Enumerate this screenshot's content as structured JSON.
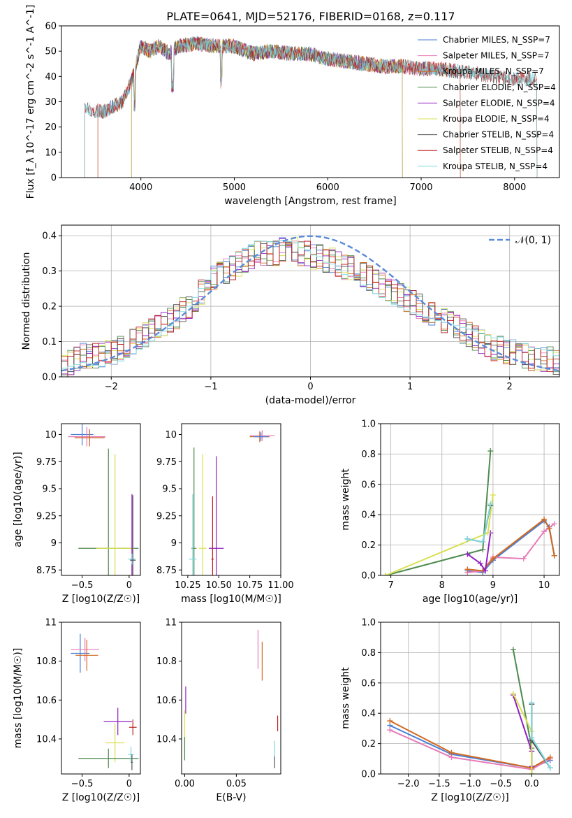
{
  "figure": {
    "title": "PLATE=0641, MJD=52176, FIBERID=0168, z=0.117"
  },
  "chart_data": [
    {
      "type": "line",
      "name": "spectrum",
      "xlabel": "wavelength [Angstrom, rest frame]",
      "ylabel": "Flux [f_λ 10^-17 erg cm^-2 s^-1 A^-1]",
      "xlim": [
        3150,
        8480
      ],
      "ylim": [
        0,
        60
      ],
      "xticks": [
        4000,
        5000,
        6000,
        7000,
        8000
      ],
      "yticks": [
        0,
        10,
        20,
        30,
        40,
        50,
        60
      ],
      "grid": false,
      "legend_position": "top-right",
      "data_trend": [
        [
          3400,
          27
        ],
        [
          3600,
          26
        ],
        [
          3800,
          30
        ],
        [
          3900,
          38
        ],
        [
          4000,
          52
        ],
        [
          4100,
          50
        ],
        [
          4200,
          52
        ],
        [
          4300,
          49
        ],
        [
          4400,
          52
        ],
        [
          4600,
          53
        ],
        [
          4800,
          52
        ],
        [
          5000,
          52
        ],
        [
          5200,
          49
        ],
        [
          5400,
          50
        ],
        [
          5600,
          49
        ],
        [
          5800,
          49
        ],
        [
          6000,
          47
        ],
        [
          6200,
          46
        ],
        [
          6400,
          45
        ],
        [
          6600,
          44
        ],
        [
          6800,
          44
        ],
        [
          7000,
          43
        ],
        [
          7200,
          43
        ],
        [
          7400,
          42
        ],
        [
          7600,
          41
        ],
        [
          7800,
          40
        ],
        [
          8000,
          39
        ],
        [
          8200,
          39
        ]
      ],
      "series": [
        {
          "name": "Chabrier MILES, N_SSP=7",
          "color": "#4a7fd6",
          "x_start": 3540,
          "x_end": 7420
        },
        {
          "name": "Salpeter MILES, N_SSP=7",
          "color": "#e77ab8",
          "x_start": 3540,
          "x_end": 7420
        },
        {
          "name": "Kroupa MILES, N_SSP=7",
          "color": "#d2691e",
          "x_start": 3540,
          "x_end": 7420
        },
        {
          "name": "Chabrier ELODIE, N_SSP=4",
          "color": "#4e8a4e",
          "x_start": 3900,
          "x_end": 6800
        },
        {
          "name": "Salpeter ELODIE, N_SSP=4",
          "color": "#9020c0",
          "x_start": 3900,
          "x_end": 6800
        },
        {
          "name": "Kroupa ELODIE, N_SSP=4",
          "color": "#d8e050",
          "x_start": 3900,
          "x_end": 6800
        },
        {
          "name": "Chabrier STELIB, N_SSP=4",
          "color": "#555555",
          "x_start": 3400,
          "x_end": 8240
        },
        {
          "name": "Salpeter STELIB, N_SSP=4",
          "color": "#c02020",
          "x_start": 3400,
          "x_end": 8240
        },
        {
          "name": "Kroupa STELIB, N_SSP=4",
          "color": "#7fd8e0",
          "x_start": 3400,
          "x_end": 8240
        }
      ]
    },
    {
      "type": "line",
      "name": "residual histogram",
      "xlabel": "(data-model)/error",
      "ylabel": "Normed distribution",
      "xlim": [
        -2.5,
        2.5
      ],
      "ylim": [
        0,
        0.43
      ],
      "xticks": [
        -2,
        -1,
        0,
        1,
        2
      ],
      "yticks": [
        0.0,
        0.1,
        0.2,
        0.3,
        0.4
      ],
      "grid": true,
      "legend_position": "top-right",
      "reference_curve": {
        "name": "𝒩(0, 1)",
        "mean": 0,
        "sigma": 1,
        "style": "dashed",
        "color": "#5b8bd9"
      },
      "bin_width": 0.1,
      "bin_start": -2.5,
      "hist_trend": [
        0.03,
        0.04,
        0.05,
        0.06,
        0.06,
        0.06,
        0.06,
        0.07,
        0.07,
        0.08,
        0.09,
        0.1,
        0.11,
        0.12,
        0.13,
        0.14,
        0.15,
        0.16,
        0.17,
        0.19,
        0.2,
        0.22,
        0.24,
        0.26,
        0.28,
        0.29,
        0.3,
        0.31,
        0.32,
        0.33,
        0.34,
        0.35,
        0.35,
        0.35,
        0.35,
        0.36,
        0.36,
        0.36,
        0.35,
        0.35,
        0.34,
        0.34,
        0.33,
        0.33,
        0.32,
        0.31,
        0.31,
        0.3,
        0.29,
        0.28,
        0.27,
        0.26,
        0.25,
        0.24,
        0.23,
        0.22,
        0.21,
        0.2,
        0.19,
        0.18,
        0.17,
        0.16,
        0.15,
        0.14,
        0.13,
        0.12,
        0.11,
        0.1,
        0.09,
        0.08,
        0.08,
        0.07,
        0.07,
        0.06,
        0.06,
        0.05,
        0.05,
        0.05,
        0.05,
        0.04
      ]
    },
    {
      "type": "scatter",
      "name": "age vs Z",
      "xlabel": "Z [log10(Z/Z☉)]",
      "ylabel": "age  [log10(age/yr)]",
      "xlim": [
        -0.72,
        0.12
      ],
      "ylim": [
        8.7,
        10.1
      ],
      "xticks": [
        -0.5,
        0.0
      ],
      "yticks": [
        8.75,
        9.0,
        9.25,
        9.5,
        9.75,
        10.0
      ],
      "grid": false,
      "points": [
        {
          "series": "Chabrier MILES",
          "x": -0.5,
          "y": 10.0,
          "xerr": 0.12,
          "yerr": 0.1
        },
        {
          "series": "Salpeter MILES",
          "x": -0.45,
          "y": 9.98,
          "xerr": 0.2,
          "yerr": 0.09
        },
        {
          "series": "Kroupa MILES",
          "x": -0.42,
          "y": 9.97,
          "xerr": 0.16,
          "yerr": 0.08
        },
        {
          "series": "Chabrier ELODIE",
          "x": -0.22,
          "y": 8.95,
          "xerr": 0.32,
          "yerr": 0.92
        },
        {
          "series": "Kroupa ELODIE",
          "x": -0.15,
          "y": 8.95,
          "xerr": 0.2,
          "yerr": 0.87
        },
        {
          "series": "Salpeter ELODIE",
          "x": 0.03,
          "y": 8.85,
          "xerr": 0.02,
          "yerr": 0.6
        },
        {
          "series": "Kroupa STELIB",
          "x": 0.03,
          "y": 8.85,
          "xerr": 0.04,
          "yerr": 0.05
        },
        {
          "series": "Chabrier STELIB",
          "x": 0.04,
          "y": 8.84,
          "xerr": 0.03,
          "yerr": 0.6
        }
      ]
    },
    {
      "type": "scatter",
      "name": "age vs mass",
      "xlabel": "mass [log10(M/M☉)]",
      "ylabel": "",
      "xlim": [
        10.2,
        11.0
      ],
      "ylim": [
        8.7,
        10.1
      ],
      "xticks": [
        10.25,
        10.5,
        10.75,
        11.0
      ],
      "tick_labels": [
        "10.25",
        "10.50",
        "10.75",
        "11.00"
      ],
      "yticks": [
        8.75,
        9.0,
        9.25,
        9.5,
        9.75,
        10.0
      ],
      "grid": false,
      "points": [
        {
          "series": "Chabrier ELODIE",
          "x": 10.3,
          "y": 8.95,
          "xerr": 0.02,
          "yerr": 0.93
        },
        {
          "series": "Kroupa STELIB",
          "x": 10.29,
          "y": 8.85,
          "xerr": 0.03,
          "yerr": 0.6
        },
        {
          "series": "Kroupa ELODIE",
          "x": 10.37,
          "y": 8.95,
          "xerr": 0.03,
          "yerr": 0.87
        },
        {
          "series": "Salpeter ELODIE",
          "x": 10.48,
          "y": 8.95,
          "xerr": 0.06,
          "yerr": 0.85
        },
        {
          "series": "Salpeter STELIB",
          "x": 10.45,
          "y": 8.85,
          "xerr": 0.01,
          "yerr": 0.58
        },
        {
          "series": "Salpeter MILES",
          "x": 10.85,
          "y": 9.99,
          "xerr": 0.1,
          "yerr": 0.05
        },
        {
          "series": "Kroupa MILES",
          "x": 10.83,
          "y": 9.98,
          "xerr": 0.08,
          "yerr": 0.05
        },
        {
          "series": "Chabrier MILES",
          "x": 10.84,
          "y": 9.98,
          "xerr": 0.06,
          "yerr": 0.04
        }
      ]
    },
    {
      "type": "line",
      "name": "mass weight vs age",
      "xlabel": "age  [log10(age/yr)]",
      "ylabel": "mass weight",
      "xlim": [
        6.8,
        10.3
      ],
      "ylim": [
        0,
        1.0
      ],
      "xticks": [
        7,
        8,
        9,
        10
      ],
      "yticks": [
        0.0,
        0.2,
        0.4,
        0.6,
        0.8,
        1.0
      ],
      "grid": true,
      "series": [
        {
          "name": "Chabrier MILES",
          "x": [
            8.5,
            8.8,
            9.0,
            10.0,
            10.1,
            10.2
          ],
          "y": [
            0.03,
            0.02,
            0.1,
            0.36,
            0.32,
            0.13
          ]
        },
        {
          "name": "Salpeter MILES",
          "x": [
            8.5,
            8.8,
            9.0,
            9.6,
            10.0,
            10.2
          ],
          "y": [
            0.02,
            0.03,
            0.12,
            0.11,
            0.29,
            0.34
          ]
        },
        {
          "name": "Kroupa MILES",
          "x": [
            8.5,
            8.8,
            9.0,
            10.0,
            10.1,
            10.2
          ],
          "y": [
            0.04,
            0.03,
            0.11,
            0.37,
            0.31,
            0.13
          ]
        },
        {
          "name": "Chabrier ELODIE",
          "x": [
            6.9,
            8.8,
            8.95
          ],
          "y": [
            0.0,
            0.17,
            0.82
          ]
        },
        {
          "name": "Salpeter ELODIE",
          "x": [
            8.5,
            8.75,
            8.85,
            8.95
          ],
          "y": [
            0.14,
            0.08,
            0.03,
            0.28
          ]
        },
        {
          "name": "Kroupa ELODIE",
          "x": [
            6.9,
            8.9,
            9.0
          ],
          "y": [
            0.0,
            0.28,
            0.53
          ]
        },
        {
          "name": "Chabrier STELIB",
          "x": [
            8.5,
            8.8,
            8.95
          ],
          "y": [
            0.24,
            0.22,
            0.46
          ]
        },
        {
          "name": "Kroupa STELIB",
          "x": [
            8.5,
            8.8,
            8.95
          ],
          "y": [
            0.24,
            0.22,
            0.47
          ]
        }
      ]
    },
    {
      "type": "scatter",
      "name": "mass vs Z",
      "xlabel": "Z [log10(Z/Z☉)]",
      "ylabel": "mass [log10(M/M☉)]",
      "xlim": [
        -0.72,
        0.12
      ],
      "ylim": [
        10.22,
        11.0
      ],
      "xticks": [
        -0.5,
        0.0
      ],
      "yticks": [
        10.4,
        10.6,
        10.8,
        11.0
      ],
      "grid": false,
      "points": [
        {
          "series": "Chabrier MILES",
          "x": -0.52,
          "y": 10.84,
          "xerr": 0.1,
          "yerr": 0.1
        },
        {
          "series": "Salpeter MILES",
          "x": -0.47,
          "y": 10.86,
          "xerr": 0.15,
          "yerr": 0.06
        },
        {
          "series": "Kroupa MILES",
          "x": -0.45,
          "y": 10.83,
          "xerr": 0.12,
          "yerr": 0.08
        },
        {
          "series": "Salpeter ELODIE",
          "x": -0.12,
          "y": 10.49,
          "xerr": 0.15,
          "yerr": 0.07
        },
        {
          "series": "Kroupa ELODIE",
          "x": -0.15,
          "y": 10.38,
          "xerr": 0.1,
          "yerr": 0.1
        },
        {
          "series": "Chabrier ELODIE",
          "x": -0.22,
          "y": 10.3,
          "xerr": 0.32,
          "yerr": 0.05
        },
        {
          "series": "Salpeter STELIB",
          "x": 0.04,
          "y": 10.46,
          "xerr": 0.04,
          "yerr": 0.04
        },
        {
          "series": "Kroupa STELIB",
          "x": 0.02,
          "y": 10.32,
          "xerr": 0.03,
          "yerr": 0.04
        },
        {
          "series": "Chabrier STELIB",
          "x": 0.03,
          "y": 10.28,
          "xerr": 0.01,
          "yerr": 0.04
        }
      ]
    },
    {
      "type": "scatter",
      "name": "mass vs E(B-V)",
      "xlabel": "E(B-V)",
      "ylabel": "",
      "xlim": [
        -0.003,
        0.093
      ],
      "ylim": [
        10.22,
        11.0
      ],
      "xticks": [
        0.0,
        0.05
      ],
      "tick_labels": [
        "0.00",
        "0.05"
      ],
      "yticks": [
        10.4,
        10.6,
        10.8,
        11.0
      ],
      "grid": false,
      "points": [
        {
          "series": "Salpeter ELODIE",
          "x": 0.001,
          "y": 10.6,
          "yerr": 0.07
        },
        {
          "series": "Kroupa ELODIE",
          "x": 0.0,
          "y": 10.45,
          "yerr": 0.1
        },
        {
          "series": "Chabrier ELODIE",
          "x": 0.0,
          "y": 10.35,
          "yerr": 0.06
        },
        {
          "series": "Salpeter MILES",
          "x": 0.071,
          "y": 10.86,
          "yerr": 0.1
        },
        {
          "series": "Kroupa MILES",
          "x": 0.075,
          "y": 10.8,
          "yerr": 0.1
        },
        {
          "series": "Salpeter STELIB",
          "x": 0.09,
          "y": 10.48,
          "yerr": 0.04
        },
        {
          "series": "Kroupa STELIB",
          "x": 0.087,
          "y": 10.35,
          "yerr": 0.04
        },
        {
          "series": "Chabrier STELIB",
          "x": 0.087,
          "y": 10.28,
          "yerr": 0.03
        }
      ]
    },
    {
      "type": "line",
      "name": "mass weight vs Z",
      "xlabel": "Z [log10(Z/Z☉)]",
      "ylabel": "mass weight",
      "xlim": [
        -2.45,
        0.45
      ],
      "ylim": [
        0,
        1.0
      ],
      "xticks": [
        -2.0,
        -1.5,
        -1.0,
        -0.5,
        0.0
      ],
      "tick_labels": [
        "−2.0",
        "−1.5",
        "−1.0",
        "−0.5",
        "0.0"
      ],
      "yticks": [
        0.0,
        0.2,
        0.4,
        0.6,
        0.8,
        1.0
      ],
      "grid": true,
      "series": [
        {
          "name": "Chabrier MILES",
          "x": [
            -2.3,
            -1.3,
            0.0,
            0.3
          ],
          "y": [
            0.32,
            0.13,
            0.04,
            0.09
          ]
        },
        {
          "name": "Salpeter MILES",
          "x": [
            -2.3,
            -1.3,
            0.0,
            0.3
          ],
          "y": [
            0.29,
            0.11,
            0.03,
            0.1
          ]
        },
        {
          "name": "Kroupa MILES",
          "x": [
            -2.3,
            -1.3,
            0.0,
            0.3
          ],
          "y": [
            0.35,
            0.14,
            0.04,
            0.11
          ]
        },
        {
          "name": "Chabrier ELODIE",
          "x": [
            -0.3,
            0.0,
            0.0
          ],
          "y": [
            0.82,
            0.17,
            0.0
          ]
        },
        {
          "name": "Salpeter ELODIE",
          "x": [
            -0.3,
            0.0,
            0.0
          ],
          "y": [
            0.52,
            0.15,
            0.05
          ]
        },
        {
          "name": "Kroupa ELODIE",
          "x": [
            -0.3,
            0.0,
            0.0
          ],
          "y": [
            0.53,
            0.28,
            0.0
          ]
        },
        {
          "name": "Chabrier STELIB",
          "x": [
            0.0,
            0.0,
            0.3
          ],
          "y": [
            0.46,
            0.22,
            0.04
          ]
        },
        {
          "name": "Kroupa STELIB",
          "x": [
            0.0,
            0.0,
            0.3
          ],
          "y": [
            0.47,
            0.24,
            0.04
          ]
        }
      ]
    }
  ],
  "legend_colors": {
    "Chabrier MILES": "#4a7fd6",
    "Salpeter MILES": "#e77ab8",
    "Kroupa MILES": "#d2691e",
    "Chabrier ELODIE": "#4e8a4e",
    "Salpeter ELODIE": "#9020c0",
    "Kroupa ELODIE": "#d8e050",
    "Chabrier STELIB": "#555555",
    "Salpeter STELIB": "#c02020",
    "Kroupa STELIB": "#7fd8e0"
  }
}
